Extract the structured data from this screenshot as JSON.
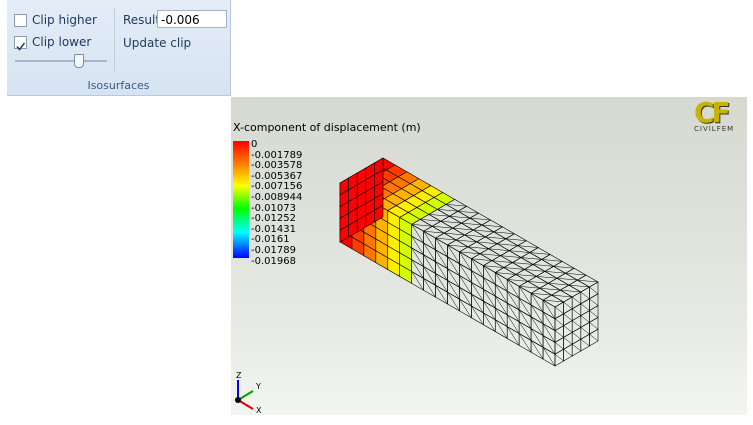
{
  "ribbon": {
    "clip_higher": {
      "label": "Clip higher",
      "checked": false
    },
    "clip_lower": {
      "label": "Clip lower",
      "checked": true
    },
    "result_label": "Result",
    "result_value": "-0.006",
    "update_clip": "Update clip",
    "group_label": "Isosurfaces"
  },
  "viewer": {
    "legend_title": "X-component of displacement (m)",
    "legend_labels": [
      "0",
      "-0.001789",
      "-0.003578",
      "-0.005367",
      "-0.007156",
      "-0.008944",
      "-0.01073",
      "-0.01252",
      "-0.01431",
      "-0.0161",
      "-0.01789",
      "-0.01968"
    ],
    "logo": {
      "mark": "CF",
      "text": "CIVILFEM"
    },
    "axes": {
      "z": "Z",
      "y": "Y",
      "x": "X"
    }
  }
}
